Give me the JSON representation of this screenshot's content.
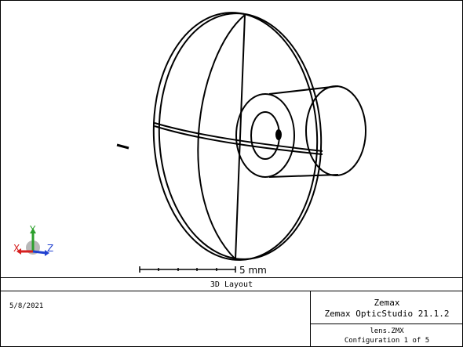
{
  "layout_window": {
    "title": "3D Layout",
    "scale_bar": {
      "label": "5 mm"
    },
    "axes": {
      "x_label": "X",
      "y_label": "Y",
      "z_label": "Z"
    },
    "colors": {
      "x_axis": "#d62020",
      "y_axis": "#2ca02c",
      "z_axis": "#2040d0",
      "drawing": "#000000"
    }
  },
  "footer": {
    "date": "5/8/2021",
    "company": "Zemax",
    "product": "Zemax OpticStudio 21.1.2",
    "file": "lens.ZMX",
    "configuration": "Configuration 1 of 5"
  }
}
